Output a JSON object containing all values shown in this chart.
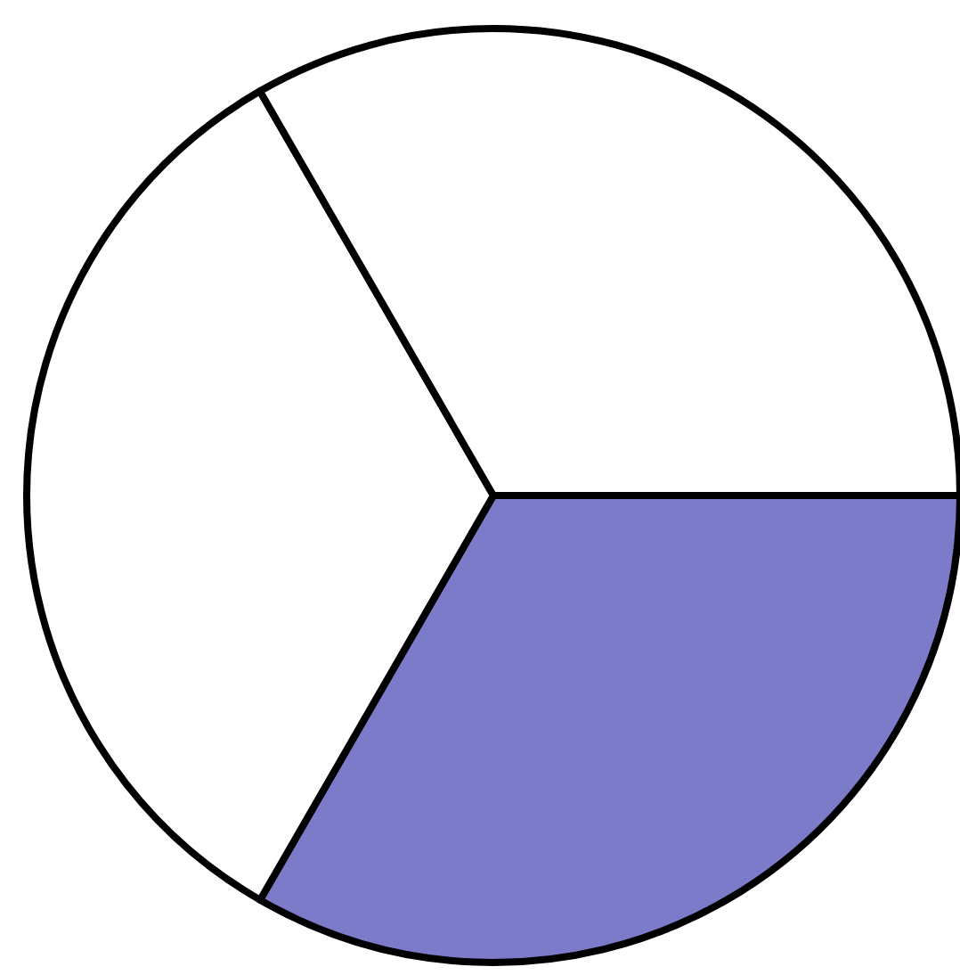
{
  "chart_data": {
    "type": "pie",
    "categories": [
      null,
      null,
      null
    ],
    "values": [
      33.33,
      33.33,
      33.34
    ],
    "colors": [
      "#7b7bc9",
      "#ffffff",
      "#ffffff"
    ]
  }
}
